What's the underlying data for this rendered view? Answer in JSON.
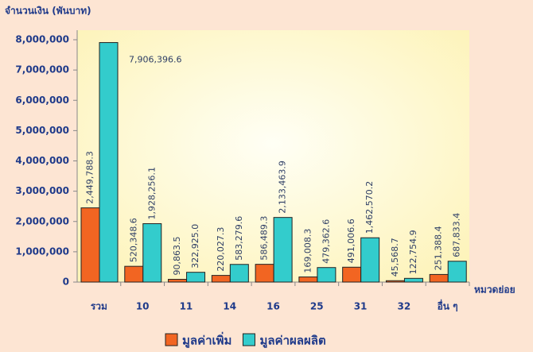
{
  "chart_data": {
    "type": "bar",
    "ylabel": "จำนวนเงิน (พันบาท)",
    "xlabel": "หมวดย่อย",
    "categories": [
      "รวม",
      "10",
      "11",
      "14",
      "16",
      "25",
      "31",
      "32",
      "อื่น ๆ"
    ],
    "series": [
      {
        "name": "มูลค่าเพิ่ม",
        "color": "#f26522",
        "values": [
          2449788.3,
          520348.6,
          90863.5,
          220027.3,
          586489.3,
          169008.3,
          491006.6,
          45568.7,
          251388.4
        ],
        "value_labels": [
          "2,449,788.3",
          "520,348.6",
          "90,863.5",
          "220,027.3",
          "586,489.3",
          "169,008.3",
          "491,006.6",
          "45,568.7",
          "251,388.4"
        ]
      },
      {
        "name": "มูลค่าผลผลิต",
        "color": "#33cccc",
        "values": [
          7906396.6,
          1928256.1,
          322925.0,
          583279.6,
          2133463.9,
          479362.6,
          1462570.2,
          122754.9,
          687833.4
        ],
        "value_labels": [
          "7,906,396.6",
          "1,928,256.1",
          "322,925.0",
          "583,279.6",
          "2,133,463.9",
          "479,362.6",
          "1,462,570.2",
          "122,754.9",
          "687,833.4"
        ]
      }
    ],
    "ylim": [
      0,
      8000000
    ],
    "yticks": [
      0,
      {
        "value": 1000000,
        "label": "1,000,000"
      },
      {
        "value": 2000000,
        "label": "2,000,000"
      },
      {
        "value": 3000000,
        "label": "3,000,000"
      },
      {
        "value": 4000000,
        "label": "4,000,000"
      },
      {
        "value": 5000000,
        "label": "5,000,000"
      },
      {
        "value": 6000000,
        "label": "6,000,000"
      },
      {
        "value": 7000000,
        "label": "7,000,000"
      },
      {
        "value": 8000000,
        "label": "8,000,000"
      }
    ],
    "legend": "bottom"
  }
}
